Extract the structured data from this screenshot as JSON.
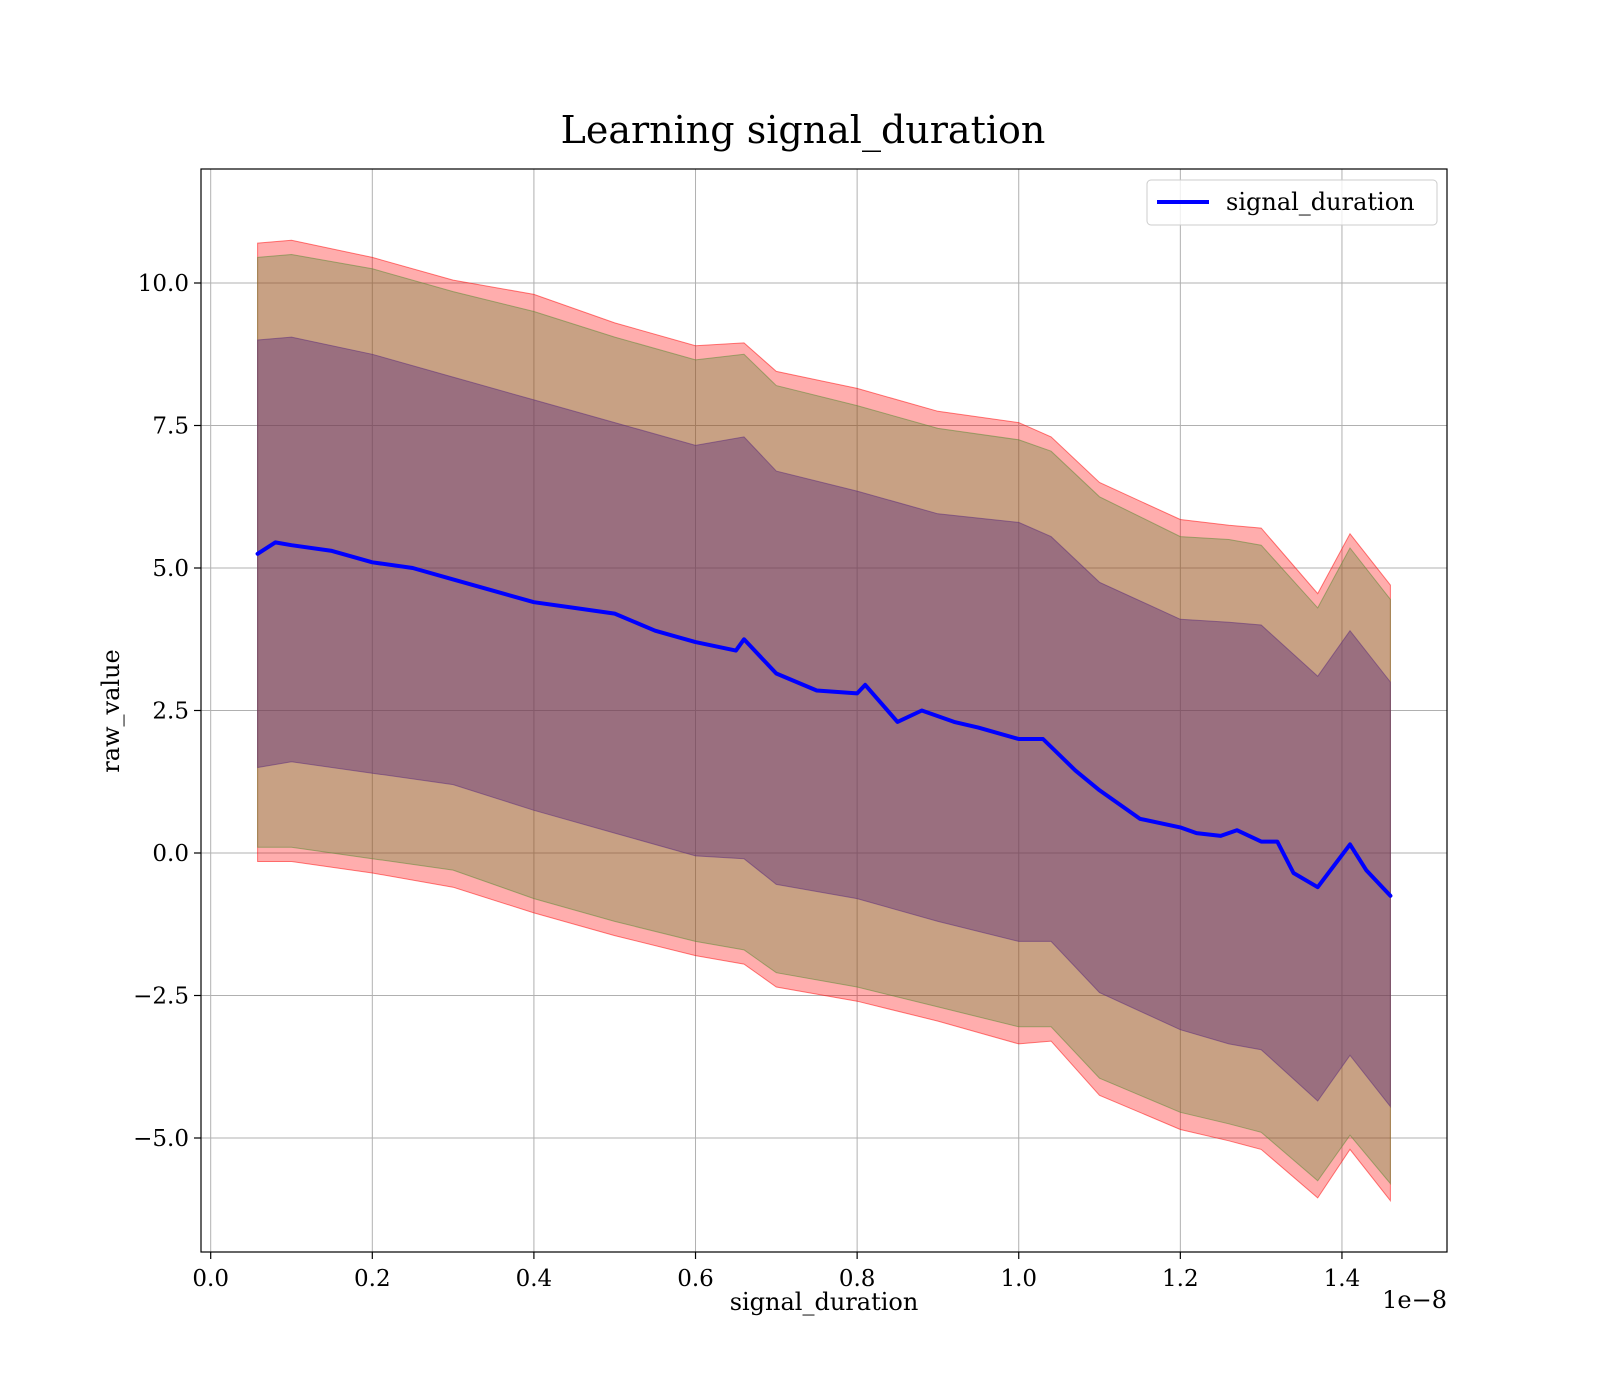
{
  "chart_data": {
    "type": "line",
    "title": "Learning signal_duration",
    "xlabel": "signal_duration",
    "ylabel": "raw_value",
    "x_offset_text": "1e−8",
    "xlim": [
      -0.012,
      1.53
    ],
    "ylim": [
      -7.0,
      12.0
    ],
    "xticks": [
      0.0,
      0.2,
      0.4,
      0.6,
      0.8,
      1.0,
      1.2,
      1.4
    ],
    "xtick_labels": [
      "0.0",
      "0.2",
      "0.4",
      "0.6",
      "0.8",
      "1.0",
      "1.2",
      "1.4"
    ],
    "yticks": [
      -5.0,
      -2.5,
      0.0,
      2.5,
      5.0,
      7.5,
      10.0
    ],
    "ytick_labels": [
      "−5.0",
      "−2.5",
      "0.0",
      "2.5",
      "5.0",
      "7.5",
      "10.0"
    ],
    "grid": true,
    "legend_position": "top-right",
    "series": [
      {
        "name": "signal_duration",
        "color": "#0000ff",
        "x": [
          0.058,
          0.08,
          0.1,
          0.15,
          0.2,
          0.25,
          0.3,
          0.35,
          0.4,
          0.45,
          0.5,
          0.55,
          0.6,
          0.65,
          0.66,
          0.7,
          0.75,
          0.8,
          0.81,
          0.85,
          0.88,
          0.92,
          0.95,
          1.0,
          1.03,
          1.07,
          1.1,
          1.15,
          1.2,
          1.22,
          1.25,
          1.27,
          1.3,
          1.32,
          1.34,
          1.37,
          1.41,
          1.43,
          1.46
        ],
        "y": [
          5.25,
          5.45,
          5.4,
          5.3,
          5.1,
          5.0,
          4.8,
          4.6,
          4.4,
          4.3,
          4.2,
          3.9,
          3.7,
          3.55,
          3.75,
          3.15,
          2.85,
          2.8,
          2.95,
          2.3,
          2.5,
          2.3,
          2.2,
          2.0,
          2.0,
          1.45,
          1.1,
          0.6,
          0.45,
          0.35,
          0.3,
          0.4,
          0.2,
          0.2,
          -0.35,
          -0.6,
          0.15,
          -0.3,
          -0.75
        ]
      }
    ],
    "bands": [
      {
        "name": "",
        "color": "#ff0000",
        "opacity": 0.32,
        "x": [
          0.058,
          0.1,
          0.2,
          0.3,
          0.4,
          0.5,
          0.6,
          0.66,
          0.7,
          0.8,
          0.9,
          1.0,
          1.04,
          1.1,
          1.2,
          1.26,
          1.3,
          1.37,
          1.41,
          1.46
        ],
        "upper": [
          10.7,
          10.75,
          10.45,
          10.05,
          9.8,
          9.3,
          8.9,
          8.95,
          8.45,
          8.15,
          7.75,
          7.55,
          7.3,
          6.5,
          5.85,
          5.75,
          5.7,
          4.55,
          5.6,
          4.7
        ],
        "lower": [
          -0.15,
          -0.15,
          -0.35,
          -0.6,
          -1.05,
          -1.45,
          -1.8,
          -1.95,
          -2.35,
          -2.6,
          -2.95,
          -3.35,
          -3.3,
          -4.25,
          -4.85,
          -5.05,
          -5.2,
          -6.05,
          -5.2,
          -6.1
        ]
      },
      {
        "name": "",
        "color": "#558a30",
        "opacity": 0.32,
        "x": [
          0.058,
          0.1,
          0.2,
          0.3,
          0.4,
          0.5,
          0.6,
          0.66,
          0.7,
          0.8,
          0.9,
          1.0,
          1.04,
          1.1,
          1.2,
          1.26,
          1.3,
          1.37,
          1.41,
          1.46
        ],
        "upper": [
          10.45,
          10.5,
          10.25,
          9.85,
          9.5,
          9.05,
          8.65,
          8.75,
          8.2,
          7.85,
          7.45,
          7.25,
          7.05,
          6.25,
          5.55,
          5.5,
          5.4,
          4.3,
          5.35,
          4.45
        ],
        "lower": [
          0.1,
          0.1,
          -0.1,
          -0.3,
          -0.8,
          -1.2,
          -1.55,
          -1.7,
          -2.1,
          -2.35,
          -2.7,
          -3.05,
          -3.05,
          -3.95,
          -4.55,
          -4.75,
          -4.9,
          -5.75,
          -4.95,
          -5.8
        ]
      },
      {
        "name": "",
        "color": "#5a2a7a",
        "opacity": 0.42,
        "x": [
          0.058,
          0.1,
          0.2,
          0.3,
          0.4,
          0.5,
          0.6,
          0.66,
          0.7,
          0.8,
          0.9,
          1.0,
          1.04,
          1.1,
          1.2,
          1.26,
          1.3,
          1.37,
          1.41,
          1.46
        ],
        "upper": [
          9.0,
          9.05,
          8.75,
          8.35,
          7.95,
          7.55,
          7.15,
          7.3,
          6.7,
          6.35,
          5.95,
          5.8,
          5.55,
          4.75,
          4.1,
          4.05,
          4.0,
          3.1,
          3.9,
          3.0
        ],
        "lower": [
          1.5,
          1.6,
          1.4,
          1.2,
          0.75,
          0.35,
          -0.05,
          -0.1,
          -0.55,
          -0.8,
          -1.2,
          -1.55,
          -1.55,
          -2.45,
          -3.1,
          -3.35,
          -3.45,
          -4.35,
          -3.55,
          -4.45
        ]
      }
    ]
  }
}
